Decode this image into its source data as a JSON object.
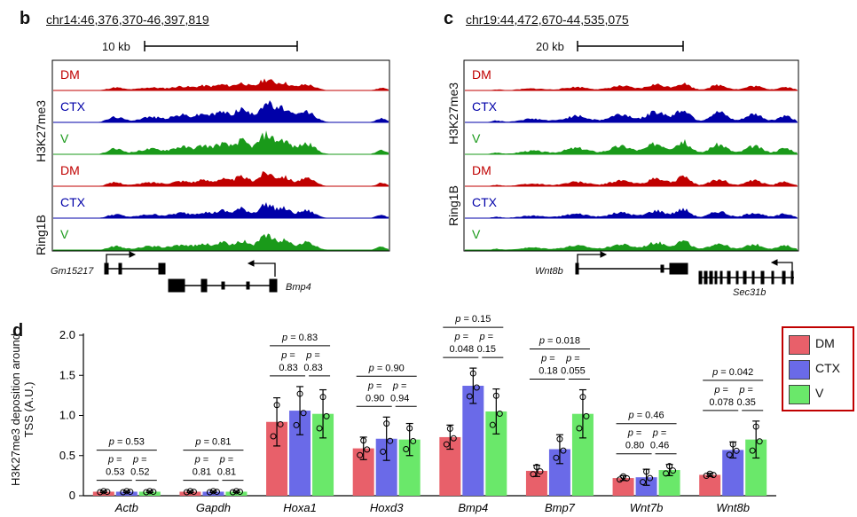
{
  "panel_b": {
    "label": "b",
    "coord": "chr14:46,376,370-46,397,819",
    "scale": "10 kb",
    "group1": "H3K27me3",
    "group2": "Ring1B",
    "tracks": [
      {
        "label": "DM",
        "color": "#c00000"
      },
      {
        "label": "CTX",
        "color": "#0000a8"
      },
      {
        "label": "V",
        "color": "#1a9a1a"
      },
      {
        "label": "DM",
        "color": "#c00000"
      },
      {
        "label": "CTX",
        "color": "#0000a8"
      },
      {
        "label": "V",
        "color": "#1a9a1a"
      }
    ],
    "gene_left": "Gm15217",
    "gene_right": "Bmp4"
  },
  "panel_c": {
    "label": "c",
    "coord": "chr19:44,472,670-44,535,075",
    "scale": "20 kb",
    "group1": "H3K27me3",
    "group2": "Ring1B",
    "tracks": [
      {
        "label": "DM",
        "color": "#c00000"
      },
      {
        "label": "CTX",
        "color": "#0000a8"
      },
      {
        "label": "V",
        "color": "#1a9a1a"
      },
      {
        "label": "DM",
        "color": "#c00000"
      },
      {
        "label": "CTX",
        "color": "#0000a8"
      },
      {
        "label": "V",
        "color": "#1a9a1a"
      }
    ],
    "gene_left": "Wnt8b",
    "gene_right": "Sec31b"
  },
  "panel_d": {
    "label": "d",
    "legend": [
      {
        "label": "DM",
        "color": "#e8606a"
      },
      {
        "label": "CTX",
        "color": "#6a6ae8"
      },
      {
        "label": "V",
        "color": "#6ae86a"
      }
    ]
  },
  "chart_data": {
    "type": "bar",
    "ylabel": "H3K27me3 deposition around TSS (A.U.)",
    "ylim": [
      0,
      2.0
    ],
    "yticks": [
      "0",
      "0.5",
      "1.0",
      "1.5",
      "2.0"
    ],
    "categories": [
      "Actb",
      "Gapdh",
      "Hoxa1",
      "Hoxd3",
      "Bmp4",
      "Bmp7",
      "Wnt7b",
      "Wnt8b"
    ],
    "series": [
      {
        "name": "DM",
        "values": [
          0.05,
          0.05,
          0.92,
          0.59,
          0.73,
          0.31,
          0.22,
          0.26
        ]
      },
      {
        "name": "CTX",
        "values": [
          0.05,
          0.05,
          1.06,
          0.71,
          1.37,
          0.58,
          0.23,
          0.57
        ]
      },
      {
        "name": "V",
        "values": [
          0.05,
          0.05,
          1.02,
          0.7,
          1.05,
          1.02,
          0.32,
          0.7
        ]
      }
    ],
    "errors": [
      {
        "name": "DM",
        "values": [
          0.01,
          0.01,
          0.3,
          0.14,
          0.15,
          0.07,
          0.03,
          0.02
        ]
      },
      {
        "name": "CTX",
        "values": [
          0.01,
          0.01,
          0.3,
          0.27,
          0.22,
          0.18,
          0.1,
          0.1
        ]
      },
      {
        "name": "V",
        "values": [
          0.01,
          0.01,
          0.3,
          0.2,
          0.28,
          0.3,
          0.07,
          0.23
        ]
      }
    ],
    "stats": [
      {
        "top": "0.53",
        "left": "0.53",
        "right": "0.52"
      },
      {
        "top": "0.81",
        "left": "0.81",
        "right": "0.81"
      },
      {
        "top": "0.83",
        "left": "0.83",
        "right": "0.83"
      },
      {
        "top": "0.90",
        "left": "0.90",
        "right": "0.94"
      },
      {
        "top": "0.15",
        "left": "0.048",
        "right": "0.15"
      },
      {
        "top": "0.018",
        "left": "0.18",
        "right": "0.055"
      },
      {
        "top": "0.46",
        "left": "0.80",
        "right": "0.46"
      },
      {
        "top": "0.042",
        "left": "0.078",
        "right": "0.35"
      }
    ],
    "p_prefix": "p",
    "legend_position": "top-right"
  }
}
